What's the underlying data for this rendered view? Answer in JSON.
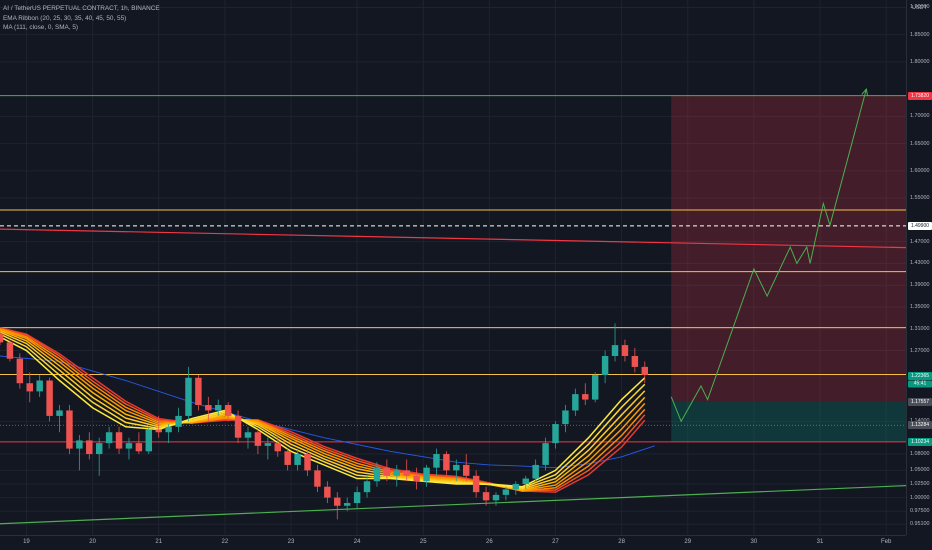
{
  "legend": {
    "symbol": "AI / TetherUS PERPETUAL CONTRACT, 1h, BINANCE",
    "ema": "EMA Ribbon (20, 25, 30, 35, 40, 45, 50, 55)",
    "ma": "MA (111, close, 0, SMA, 5)"
  },
  "price_axis": {
    "unit": "USDT",
    "ticks": [
      {
        "label": "1.90000",
        "value": 1.9
      },
      {
        "label": "1.85000",
        "value": 1.85
      },
      {
        "label": "1.80000",
        "value": 1.8
      },
      {
        "label": "1.70000",
        "value": 1.7
      },
      {
        "label": "1.65000",
        "value": 1.65
      },
      {
        "label": "1.60000",
        "value": 1.6
      },
      {
        "label": "1.55000",
        "value": 1.55
      },
      {
        "label": "1.47000",
        "value": 1.47
      },
      {
        "label": "1.43000",
        "value": 1.43
      },
      {
        "label": "1.39000",
        "value": 1.39
      },
      {
        "label": "1.35000",
        "value": 1.35
      },
      {
        "label": "1.31000",
        "value": 1.31
      },
      {
        "label": "1.27000",
        "value": 1.27
      },
      {
        "label": "1.14000",
        "value": 1.14
      },
      {
        "label": "1.08000",
        "value": 1.08
      },
      {
        "label": "1.05000",
        "value": 1.05
      },
      {
        "label": "1.02500",
        "value": 1.025
      },
      {
        "label": "1.00000",
        "value": 1.0
      },
      {
        "label": "0.97500",
        "value": 0.975
      },
      {
        "label": "0.95100",
        "value": 0.951
      }
    ],
    "badges": [
      {
        "label": "1.73820",
        "value": 1.7382,
        "color": "#f23645"
      },
      {
        "label": "1.49900",
        "value": 1.499,
        "color": "#ffffff",
        "text": "#131722"
      },
      {
        "label": "1.22365",
        "value": 1.2237,
        "color": "#089981",
        "sub": "45:41"
      },
      {
        "label": "1.17557",
        "value": 1.1756,
        "color": "#4a4e59"
      },
      {
        "label": "1.13284",
        "value": 1.1328,
        "color": "#4a4e59"
      },
      {
        "label": "1.10234",
        "value": 1.1023,
        "color": "#089981"
      }
    ]
  },
  "time_axis": {
    "ticks": [
      {
        "label": "19",
        "day": 19
      },
      {
        "label": "20",
        "day": 20
      },
      {
        "label": "21",
        "day": 21
      },
      {
        "label": "22",
        "day": 22
      },
      {
        "label": "23",
        "day": 23
      },
      {
        "label": "24",
        "day": 24
      },
      {
        "label": "25",
        "day": 25
      },
      {
        "label": "26",
        "day": 26
      },
      {
        "label": "27",
        "day": 27
      },
      {
        "label": "28",
        "day": 28
      },
      {
        "label": "29",
        "day": 29
      },
      {
        "label": "30",
        "day": 30
      },
      {
        "label": "31",
        "day": 31
      },
      {
        "label": "Feb",
        "day": 32
      }
    ]
  },
  "chart_data": {
    "type": "candlestick",
    "x_range": [
      18.6,
      32.3
    ],
    "y_range": [
      0.935,
      1.91
    ],
    "horizontal_levels": [
      {
        "price": 1.7382,
        "color": "#4caf50",
        "name": "target"
      },
      {
        "price": 1.528,
        "color": "#f5c04a"
      },
      {
        "price": 1.415,
        "color": "#f5c04a"
      },
      {
        "price": 1.312,
        "color": "#f5c04a"
      },
      {
        "price": 1.226,
        "color": "#f5c04a"
      },
      {
        "price": 1.1023,
        "color": "#f23645"
      },
      {
        "price": 1.499,
        "color": "#ffffff",
        "dashed": true
      },
      {
        "price": 1.1328,
        "color": "#787b86",
        "dotted": true
      }
    ],
    "trendlines": [
      {
        "from": [
          18.6,
          1.493
        ],
        "to": [
          32.3,
          1.459
        ],
        "color": "#f23645"
      },
      {
        "from": [
          18.6,
          0.952
        ],
        "to": [
          32.3,
          1.022
        ],
        "color": "#4caf50"
      }
    ],
    "position": {
      "start": 28.75,
      "end": 32.3,
      "entry": 1.1756,
      "target": 1.7382,
      "stop": 1.1023
    },
    "projection": [
      [
        28.75,
        1.185
      ],
      [
        28.9,
        1.14
      ],
      [
        29.2,
        1.205
      ],
      [
        29.3,
        1.18
      ],
      [
        30.0,
        1.42
      ],
      [
        30.2,
        1.37
      ],
      [
        30.55,
        1.46
      ],
      [
        30.65,
        1.43
      ],
      [
        30.8,
        1.46
      ],
      [
        30.85,
        1.43
      ],
      [
        31.05,
        1.54
      ],
      [
        31.15,
        1.5
      ],
      [
        31.7,
        1.75
      ]
    ],
    "candles": [
      [
        18.6,
        1.3,
        1.305,
        1.28,
        1.285
      ],
      [
        18.75,
        1.285,
        1.288,
        1.25,
        1.255
      ],
      [
        18.9,
        1.255,
        1.265,
        1.2,
        1.21
      ],
      [
        19.05,
        1.21,
        1.23,
        1.175,
        1.195
      ],
      [
        19.2,
        1.195,
        1.225,
        1.185,
        1.215
      ],
      [
        19.35,
        1.215,
        1.22,
        1.14,
        1.15
      ],
      [
        19.5,
        1.15,
        1.17,
        1.12,
        1.16
      ],
      [
        19.65,
        1.16,
        1.17,
        1.08,
        1.09
      ],
      [
        19.8,
        1.09,
        1.115,
        1.05,
        1.105
      ],
      [
        19.95,
        1.105,
        1.12,
        1.07,
        1.08
      ],
      [
        20.1,
        1.08,
        1.11,
        1.04,
        1.1
      ],
      [
        20.25,
        1.1,
        1.13,
        1.09,
        1.12
      ],
      [
        20.4,
        1.12,
        1.13,
        1.08,
        1.09
      ],
      [
        20.55,
        1.09,
        1.11,
        1.07,
        1.1
      ],
      [
        20.7,
        1.1,
        1.12,
        1.08,
        1.085
      ],
      [
        20.85,
        1.085,
        1.13,
        1.08,
        1.125
      ],
      [
        21.0,
        1.125,
        1.15,
        1.11,
        1.12
      ],
      [
        21.15,
        1.12,
        1.135,
        1.1,
        1.13
      ],
      [
        21.3,
        1.13,
        1.165,
        1.12,
        1.15
      ],
      [
        21.45,
        1.15,
        1.24,
        1.14,
        1.22
      ],
      [
        21.6,
        1.22,
        1.225,
        1.16,
        1.17
      ],
      [
        21.75,
        1.17,
        1.185,
        1.14,
        1.16
      ],
      [
        21.9,
        1.16,
        1.18,
        1.15,
        1.17
      ],
      [
        22.05,
        1.17,
        1.175,
        1.14,
        1.15
      ],
      [
        22.2,
        1.15,
        1.16,
        1.1,
        1.11
      ],
      [
        22.35,
        1.11,
        1.13,
        1.09,
        1.12
      ],
      [
        22.5,
        1.12,
        1.125,
        1.08,
        1.095
      ],
      [
        22.65,
        1.095,
        1.11,
        1.07,
        1.1
      ],
      [
        22.8,
        1.1,
        1.115,
        1.075,
        1.085
      ],
      [
        22.95,
        1.085,
        1.09,
        1.05,
        1.06
      ],
      [
        23.1,
        1.06,
        1.09,
        1.05,
        1.08
      ],
      [
        23.25,
        1.08,
        1.09,
        1.04,
        1.05
      ],
      [
        23.4,
        1.05,
        1.06,
        1.01,
        1.02
      ],
      [
        23.55,
        1.02,
        1.03,
        0.99,
        1.0
      ],
      [
        23.7,
        1.0,
        1.01,
        0.96,
        0.985
      ],
      [
        23.85,
        0.985,
        1.0,
        0.975,
        0.99
      ],
      [
        24.0,
        0.99,
        1.02,
        0.98,
        1.01
      ],
      [
        24.15,
        1.01,
        1.04,
        1.0,
        1.03
      ],
      [
        24.3,
        1.03,
        1.065,
        1.02,
        1.055
      ],
      [
        24.45,
        1.055,
        1.07,
        1.03,
        1.04
      ],
      [
        24.6,
        1.04,
        1.06,
        1.02,
        1.05
      ],
      [
        24.75,
        1.05,
        1.07,
        1.03,
        1.04
      ],
      [
        24.9,
        1.04,
        1.055,
        1.015,
        1.03
      ],
      [
        25.05,
        1.03,
        1.06,
        1.02,
        1.055
      ],
      [
        25.2,
        1.055,
        1.09,
        1.04,
        1.08
      ],
      [
        25.35,
        1.08,
        1.085,
        1.04,
        1.05
      ],
      [
        25.5,
        1.05,
        1.07,
        1.03,
        1.06
      ],
      [
        25.65,
        1.06,
        1.08,
        1.03,
        1.04
      ],
      [
        25.8,
        1.04,
        1.05,
        1.0,
        1.01
      ],
      [
        25.95,
        1.01,
        1.02,
        0.985,
        0.995
      ],
      [
        26.1,
        0.995,
        1.01,
        0.985,
        1.005
      ],
      [
        26.25,
        1.005,
        1.02,
        0.995,
        1.015
      ],
      [
        26.4,
        1.015,
        1.03,
        1.005,
        1.025
      ],
      [
        26.55,
        1.025,
        1.04,
        1.015,
        1.035
      ],
      [
        26.7,
        1.035,
        1.07,
        1.03,
        1.06
      ],
      [
        26.85,
        1.06,
        1.11,
        1.05,
        1.1
      ],
      [
        27.0,
        1.1,
        1.14,
        1.09,
        1.135
      ],
      [
        27.15,
        1.135,
        1.17,
        1.12,
        1.16
      ],
      [
        27.3,
        1.16,
        1.2,
        1.15,
        1.19
      ],
      [
        27.45,
        1.19,
        1.21,
        1.17,
        1.18
      ],
      [
        27.6,
        1.18,
        1.23,
        1.175,
        1.225
      ],
      [
        27.75,
        1.225,
        1.27,
        1.21,
        1.26
      ],
      [
        27.9,
        1.26,
        1.32,
        1.25,
        1.28
      ],
      [
        28.05,
        1.28,
        1.29,
        1.25,
        1.26
      ],
      [
        28.2,
        1.26,
        1.275,
        1.23,
        1.24
      ],
      [
        28.35,
        1.24,
        1.25,
        1.21,
        1.225
      ]
    ],
    "ema_ribbon": {
      "x": [
        18.6,
        19.0,
        19.5,
        20.0,
        20.5,
        21.0,
        21.5,
        22.0,
        22.5,
        23.0,
        23.5,
        24.0,
        24.5,
        25.0,
        25.5,
        26.0,
        26.5,
        27.0,
        27.5,
        28.0,
        28.35
      ],
      "series": [
        {
          "name": "EMA 20",
          "color": "#ffeb3b",
          "values": [
            1.295,
            1.27,
            1.215,
            1.165,
            1.13,
            1.125,
            1.145,
            1.16,
            1.125,
            1.085,
            1.06,
            1.035,
            1.035,
            1.03,
            1.025,
            1.025,
            1.02,
            1.05,
            1.11,
            1.18,
            1.22
          ]
        },
        {
          "name": "EMA 25",
          "color": "#fdd835",
          "values": [
            1.3,
            1.277,
            1.225,
            1.175,
            1.138,
            1.127,
            1.142,
            1.157,
            1.13,
            1.092,
            1.066,
            1.041,
            1.036,
            1.031,
            1.027,
            1.024,
            1.018,
            1.042,
            1.098,
            1.166,
            1.208
          ]
        },
        {
          "name": "EMA 30",
          "color": "#ffca28",
          "values": [
            1.304,
            1.283,
            1.234,
            1.184,
            1.146,
            1.13,
            1.14,
            1.154,
            1.134,
            1.098,
            1.071,
            1.047,
            1.038,
            1.033,
            1.029,
            1.024,
            1.016,
            1.035,
            1.087,
            1.152,
            1.196
          ]
        },
        {
          "name": "EMA 35",
          "color": "#ffb300",
          "values": [
            1.307,
            1.288,
            1.242,
            1.193,
            1.153,
            1.133,
            1.139,
            1.151,
            1.137,
            1.104,
            1.076,
            1.053,
            1.041,
            1.035,
            1.031,
            1.024,
            1.014,
            1.029,
            1.077,
            1.139,
            1.184
          ]
        },
        {
          "name": "EMA 40",
          "color": "#ff9800",
          "values": [
            1.309,
            1.292,
            1.249,
            1.201,
            1.16,
            1.136,
            1.138,
            1.148,
            1.139,
            1.109,
            1.081,
            1.058,
            1.044,
            1.037,
            1.033,
            1.024,
            1.013,
            1.023,
            1.067,
            1.126,
            1.173
          ]
        },
        {
          "name": "EMA 45",
          "color": "#fb8c00",
          "values": [
            1.31,
            1.295,
            1.255,
            1.208,
            1.166,
            1.139,
            1.137,
            1.146,
            1.141,
            1.113,
            1.086,
            1.063,
            1.047,
            1.039,
            1.035,
            1.025,
            1.012,
            1.018,
            1.058,
            1.114,
            1.162
          ]
        },
        {
          "name": "EMA 50",
          "color": "#f4511e",
          "values": [
            1.311,
            1.298,
            1.26,
            1.214,
            1.172,
            1.142,
            1.137,
            1.144,
            1.142,
            1.117,
            1.09,
            1.068,
            1.05,
            1.041,
            1.037,
            1.026,
            1.012,
            1.014,
            1.05,
            1.103,
            1.152
          ]
        },
        {
          "name": "EMA 55",
          "color": "#e53935",
          "values": [
            1.312,
            1.3,
            1.264,
            1.22,
            1.177,
            1.145,
            1.137,
            1.142,
            1.143,
            1.121,
            1.094,
            1.072,
            1.053,
            1.043,
            1.039,
            1.027,
            1.012,
            1.01,
            1.042,
            1.093,
            1.142
          ]
        }
      ]
    },
    "ma": {
      "name": "MA 111",
      "color": "#2962ff",
      "x": [
        18.6,
        19.5,
        20.5,
        21.5,
        22.5,
        23.5,
        24.5,
        25.5,
        26.0,
        26.5,
        27.0,
        27.5,
        28.0,
        28.5
      ],
      "values": [
        1.26,
        1.25,
        1.215,
        1.175,
        1.14,
        1.11,
        1.085,
        1.065,
        1.06,
        1.058,
        1.055,
        1.062,
        1.075,
        1.095
      ]
    }
  }
}
